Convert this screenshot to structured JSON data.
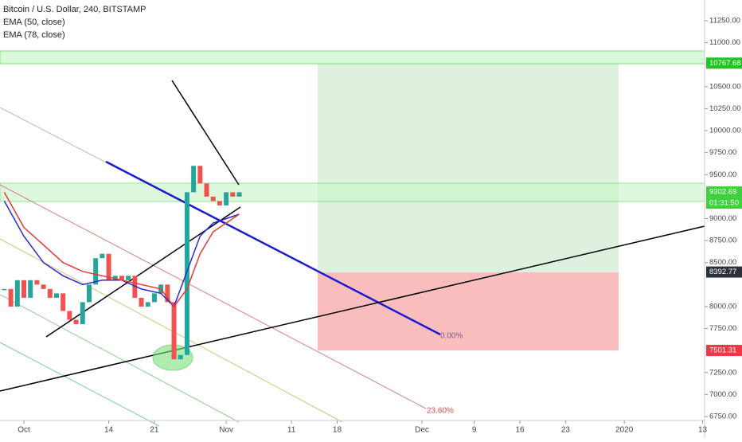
{
  "chart_data": {
    "type": "candlestick-line",
    "title": "Bitcoin / U.S. Dollar, 240, BITSTAMP",
    "x": [
      -3,
      -2,
      -1,
      0,
      1,
      2,
      3,
      4,
      5,
      6,
      7,
      8,
      9,
      10,
      11,
      12,
      13,
      14,
      15,
      16,
      17,
      18,
      19,
      20,
      21,
      22,
      23,
      24,
      25,
      26,
      27,
      28,
      29,
      30,
      31,
      32,
      33
    ],
    "values": [
      8200,
      8000,
      8300,
      8100,
      8300,
      8250,
      8200,
      8100,
      8150,
      7950,
      7850,
      7800,
      8050,
      8250,
      8550,
      8600,
      8300,
      8350,
      8300,
      8350,
      8100,
      8000,
      8050,
      8150,
      8250,
      8050,
      7400,
      7450,
      9300,
      9600,
      9400,
      9250,
      9200,
      9150,
      9300,
      9250,
      9300
    ],
    "color": "#26a69a",
    "series": [
      {
        "name": "EMA (50, close)",
        "color": "#2a2acf",
        "x": [
          -3,
          0,
          3,
          6,
          9,
          12,
          15,
          18,
          21,
          23,
          25,
          27,
          29,
          31,
          33
        ],
        "values": [
          9200,
          8800,
          8500,
          8350,
          8250,
          8300,
          8300,
          8200,
          8150,
          8000,
          8400,
          8800,
          8950,
          9000,
          9050
        ]
      },
      {
        "name": "EMA (78, close)",
        "color": "#e53935",
        "x": [
          -3,
          0,
          3,
          6,
          9,
          12,
          15,
          18,
          21,
          23,
          25,
          27,
          29,
          31,
          33
        ],
        "values": [
          9300,
          8900,
          8700,
          8500,
          8400,
          8350,
          8300,
          8250,
          8200,
          8000,
          8200,
          8600,
          8850,
          8950,
          9050
        ]
      }
    ],
    "xlim": [
      -3.66,
      104.3
    ],
    "xticks": [
      {
        "value": 0,
        "label": "Oct"
      },
      {
        "value": 13,
        "label": "14"
      },
      {
        "value": 20,
        "label": "21"
      },
      {
        "value": 31,
        "label": "Nov"
      },
      {
        "value": 41,
        "label": "11"
      },
      {
        "value": 48,
        "label": "18"
      },
      {
        "value": 61,
        "label": "Dec"
      },
      {
        "value": 69,
        "label": "9"
      },
      {
        "value": 76,
        "label": "16"
      },
      {
        "value": 83,
        "label": "23"
      },
      {
        "value": 92,
        "label": "2020"
      },
      {
        "value": 104,
        "label": "13"
      }
    ],
    "ylim": [
      6750,
      11250
    ],
    "yticks": [
      {
        "value": 11250,
        "label": "11250.00"
      },
      {
        "value": 11000,
        "label": "11000.00"
      },
      {
        "value": 10500,
        "label": "10500.00"
      },
      {
        "value": 10250,
        "label": "10250.00"
      },
      {
        "value": 10000,
        "label": "10000.00"
      },
      {
        "value": 9750,
        "label": "9750.00"
      },
      {
        "value": 9500,
        "label": "9500.00"
      },
      {
        "value": 9000,
        "label": "9000.00"
      },
      {
        "value": 8750,
        "label": "8750.00"
      },
      {
        "value": 8500,
        "label": "8500.00"
      },
      {
        "value": 8000,
        "label": "8000.00"
      },
      {
        "value": 7750,
        "label": "7750.00"
      },
      {
        "value": 7250,
        "label": "7250.00"
      },
      {
        "value": 7000,
        "label": "7000.00"
      },
      {
        "value": 6750,
        "label": "6750.00"
      }
    ],
    "price_labels": [
      {
        "value": 10767.68,
        "label": "10767.68",
        "color": "#22c322"
      },
      {
        "value": 9302.69,
        "label": "9302.69",
        "color": "#3fcf3f"
      },
      {
        "value": 8392.77,
        "label": "8392.77",
        "color": "#2c3038"
      },
      {
        "value": 7501.31,
        "label": "7501.31",
        "color": "#f23645"
      }
    ],
    "countdown": "01:31:50",
    "annotations": [
      "0.00%",
      "23.60%"
    ]
  }
}
